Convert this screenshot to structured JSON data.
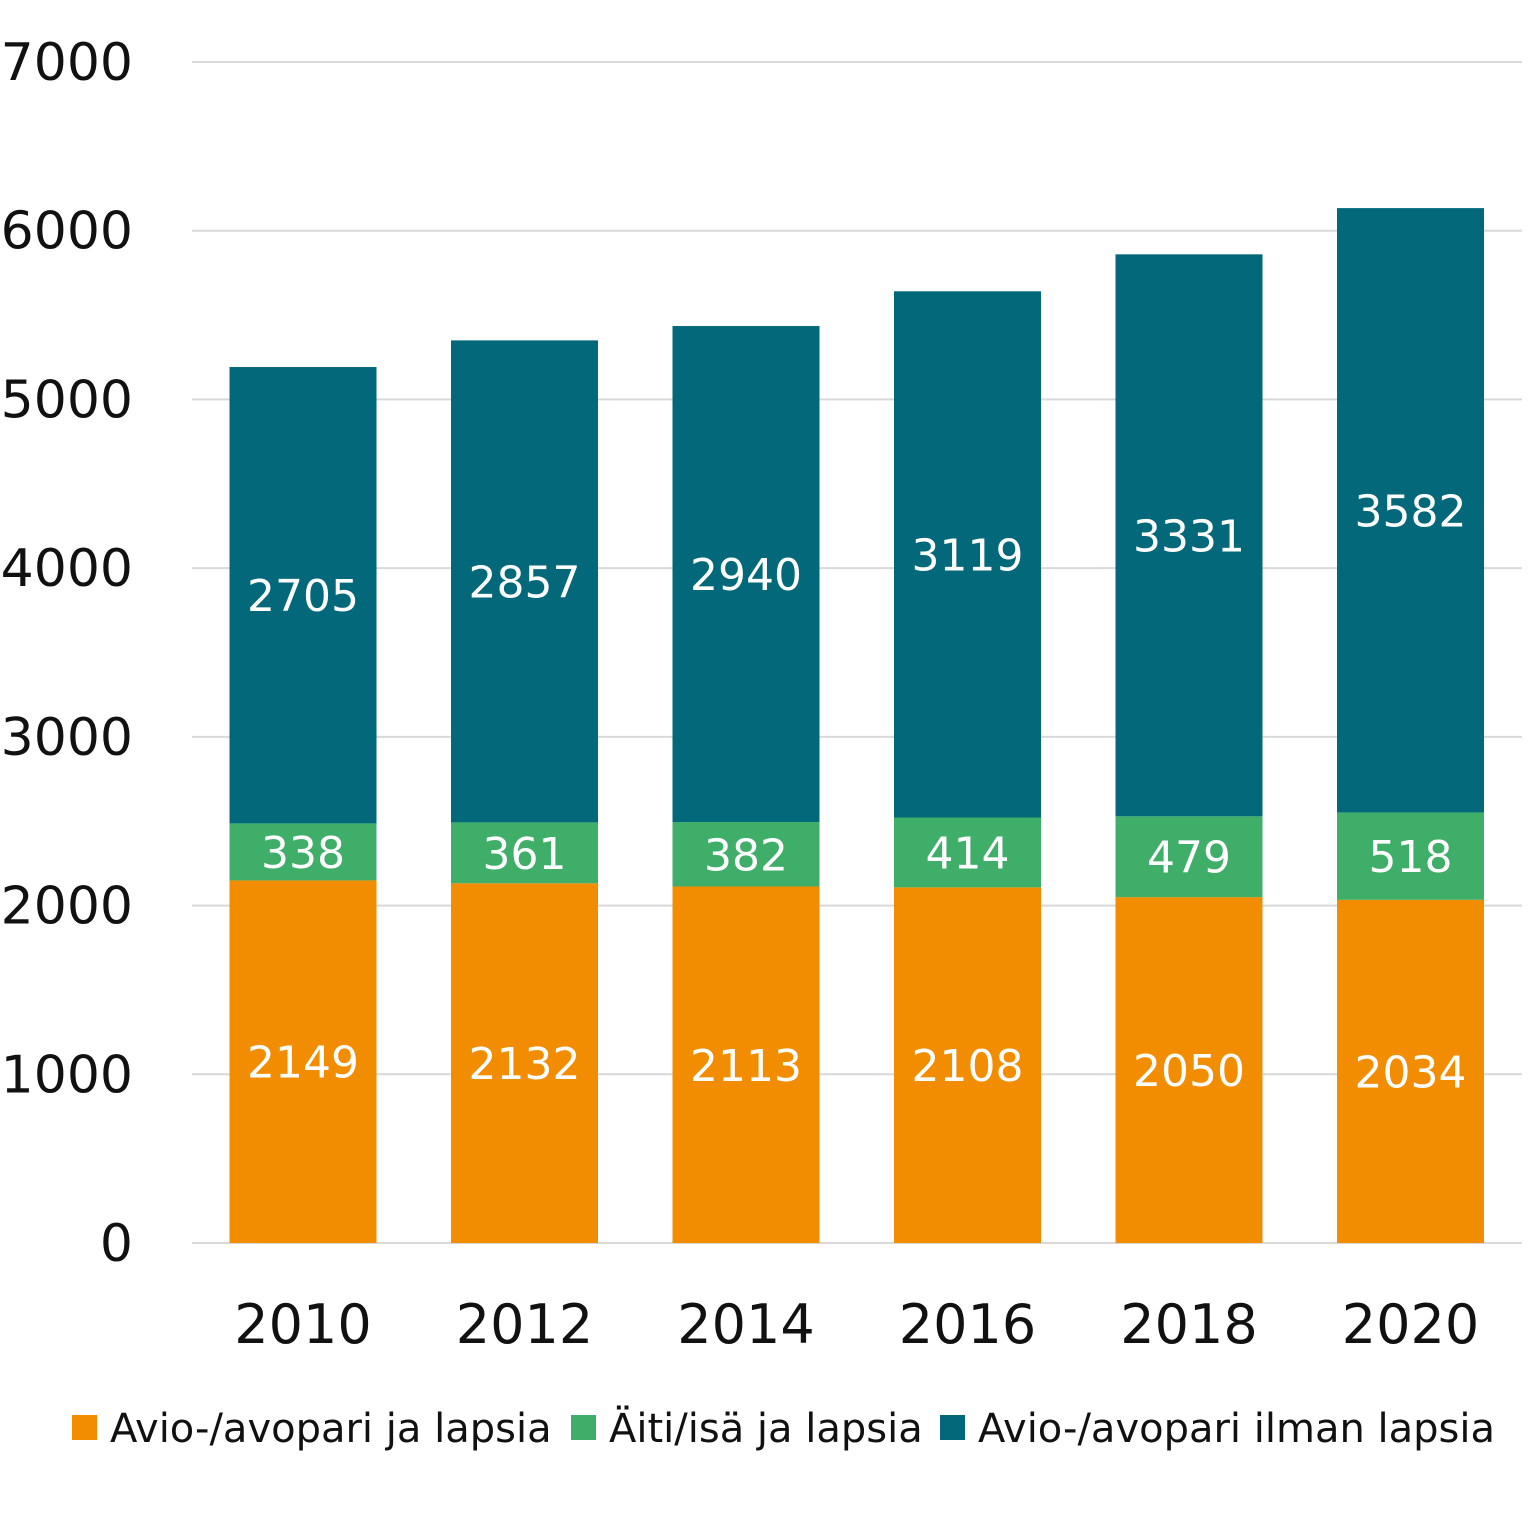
{
  "chart_data": {
    "type": "bar",
    "stacked": true,
    "title": "",
    "xlabel": "",
    "ylabel": "",
    "ylim": [
      0,
      7000
    ],
    "yticks": [
      0,
      1000,
      2000,
      3000,
      4000,
      5000,
      6000,
      7000
    ],
    "grid": true,
    "legend_position": "bottom",
    "categories": [
      "2010",
      "2012",
      "2014",
      "2016",
      "2018",
      "2020"
    ],
    "series": [
      {
        "name": "Avio-/avopari ja lapsia",
        "color": "#F28C00",
        "values": [
          2149,
          2132,
          2113,
          2108,
          2050,
          2034
        ]
      },
      {
        "name": "Äiti/isä ja lapsia",
        "color": "#3FAE69",
        "values": [
          338,
          361,
          382,
          414,
          479,
          518
        ]
      },
      {
        "name": "Avio-/avopari ilman lapsia",
        "color": "#02687A",
        "values": [
          2705,
          2857,
          2940,
          3119,
          3331,
          3582
        ]
      }
    ]
  }
}
